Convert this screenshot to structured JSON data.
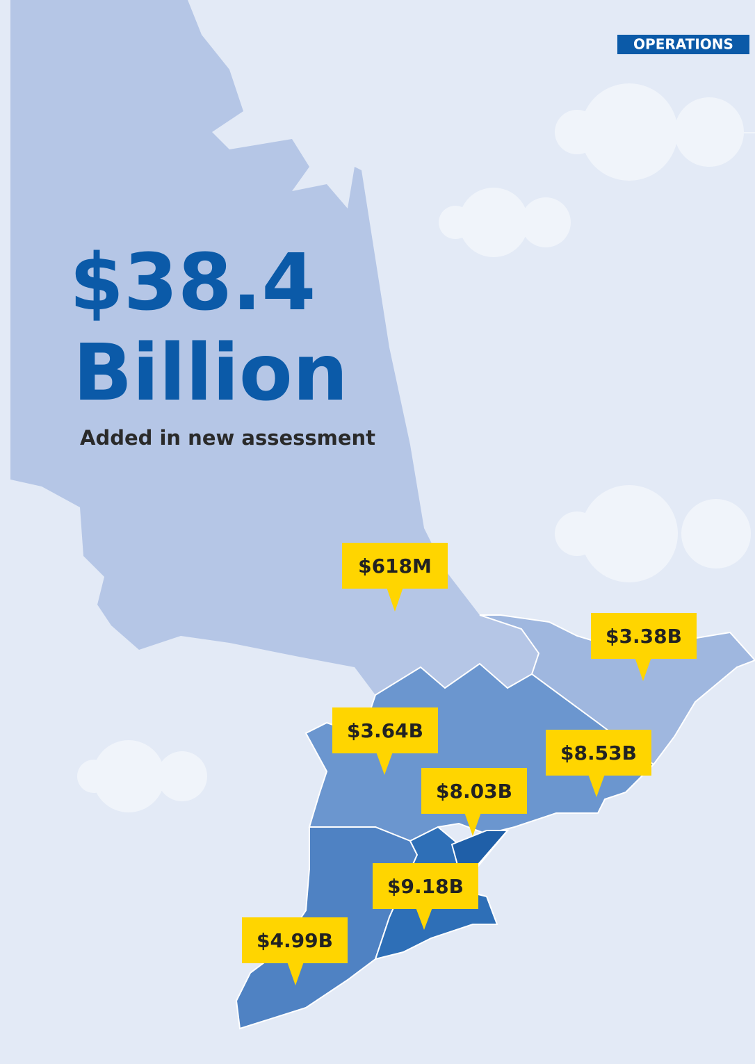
{
  "tag": "OPERATIONS",
  "headline": {
    "amount": "$38.4",
    "unit": "Billion",
    "caption": "Added in new assessment"
  },
  "callouts": [
    "$618M",
    "$3.38B",
    "$3.64B",
    "$8.53B",
    "$8.03B",
    "$9.18B",
    "$4.99B"
  ]
}
